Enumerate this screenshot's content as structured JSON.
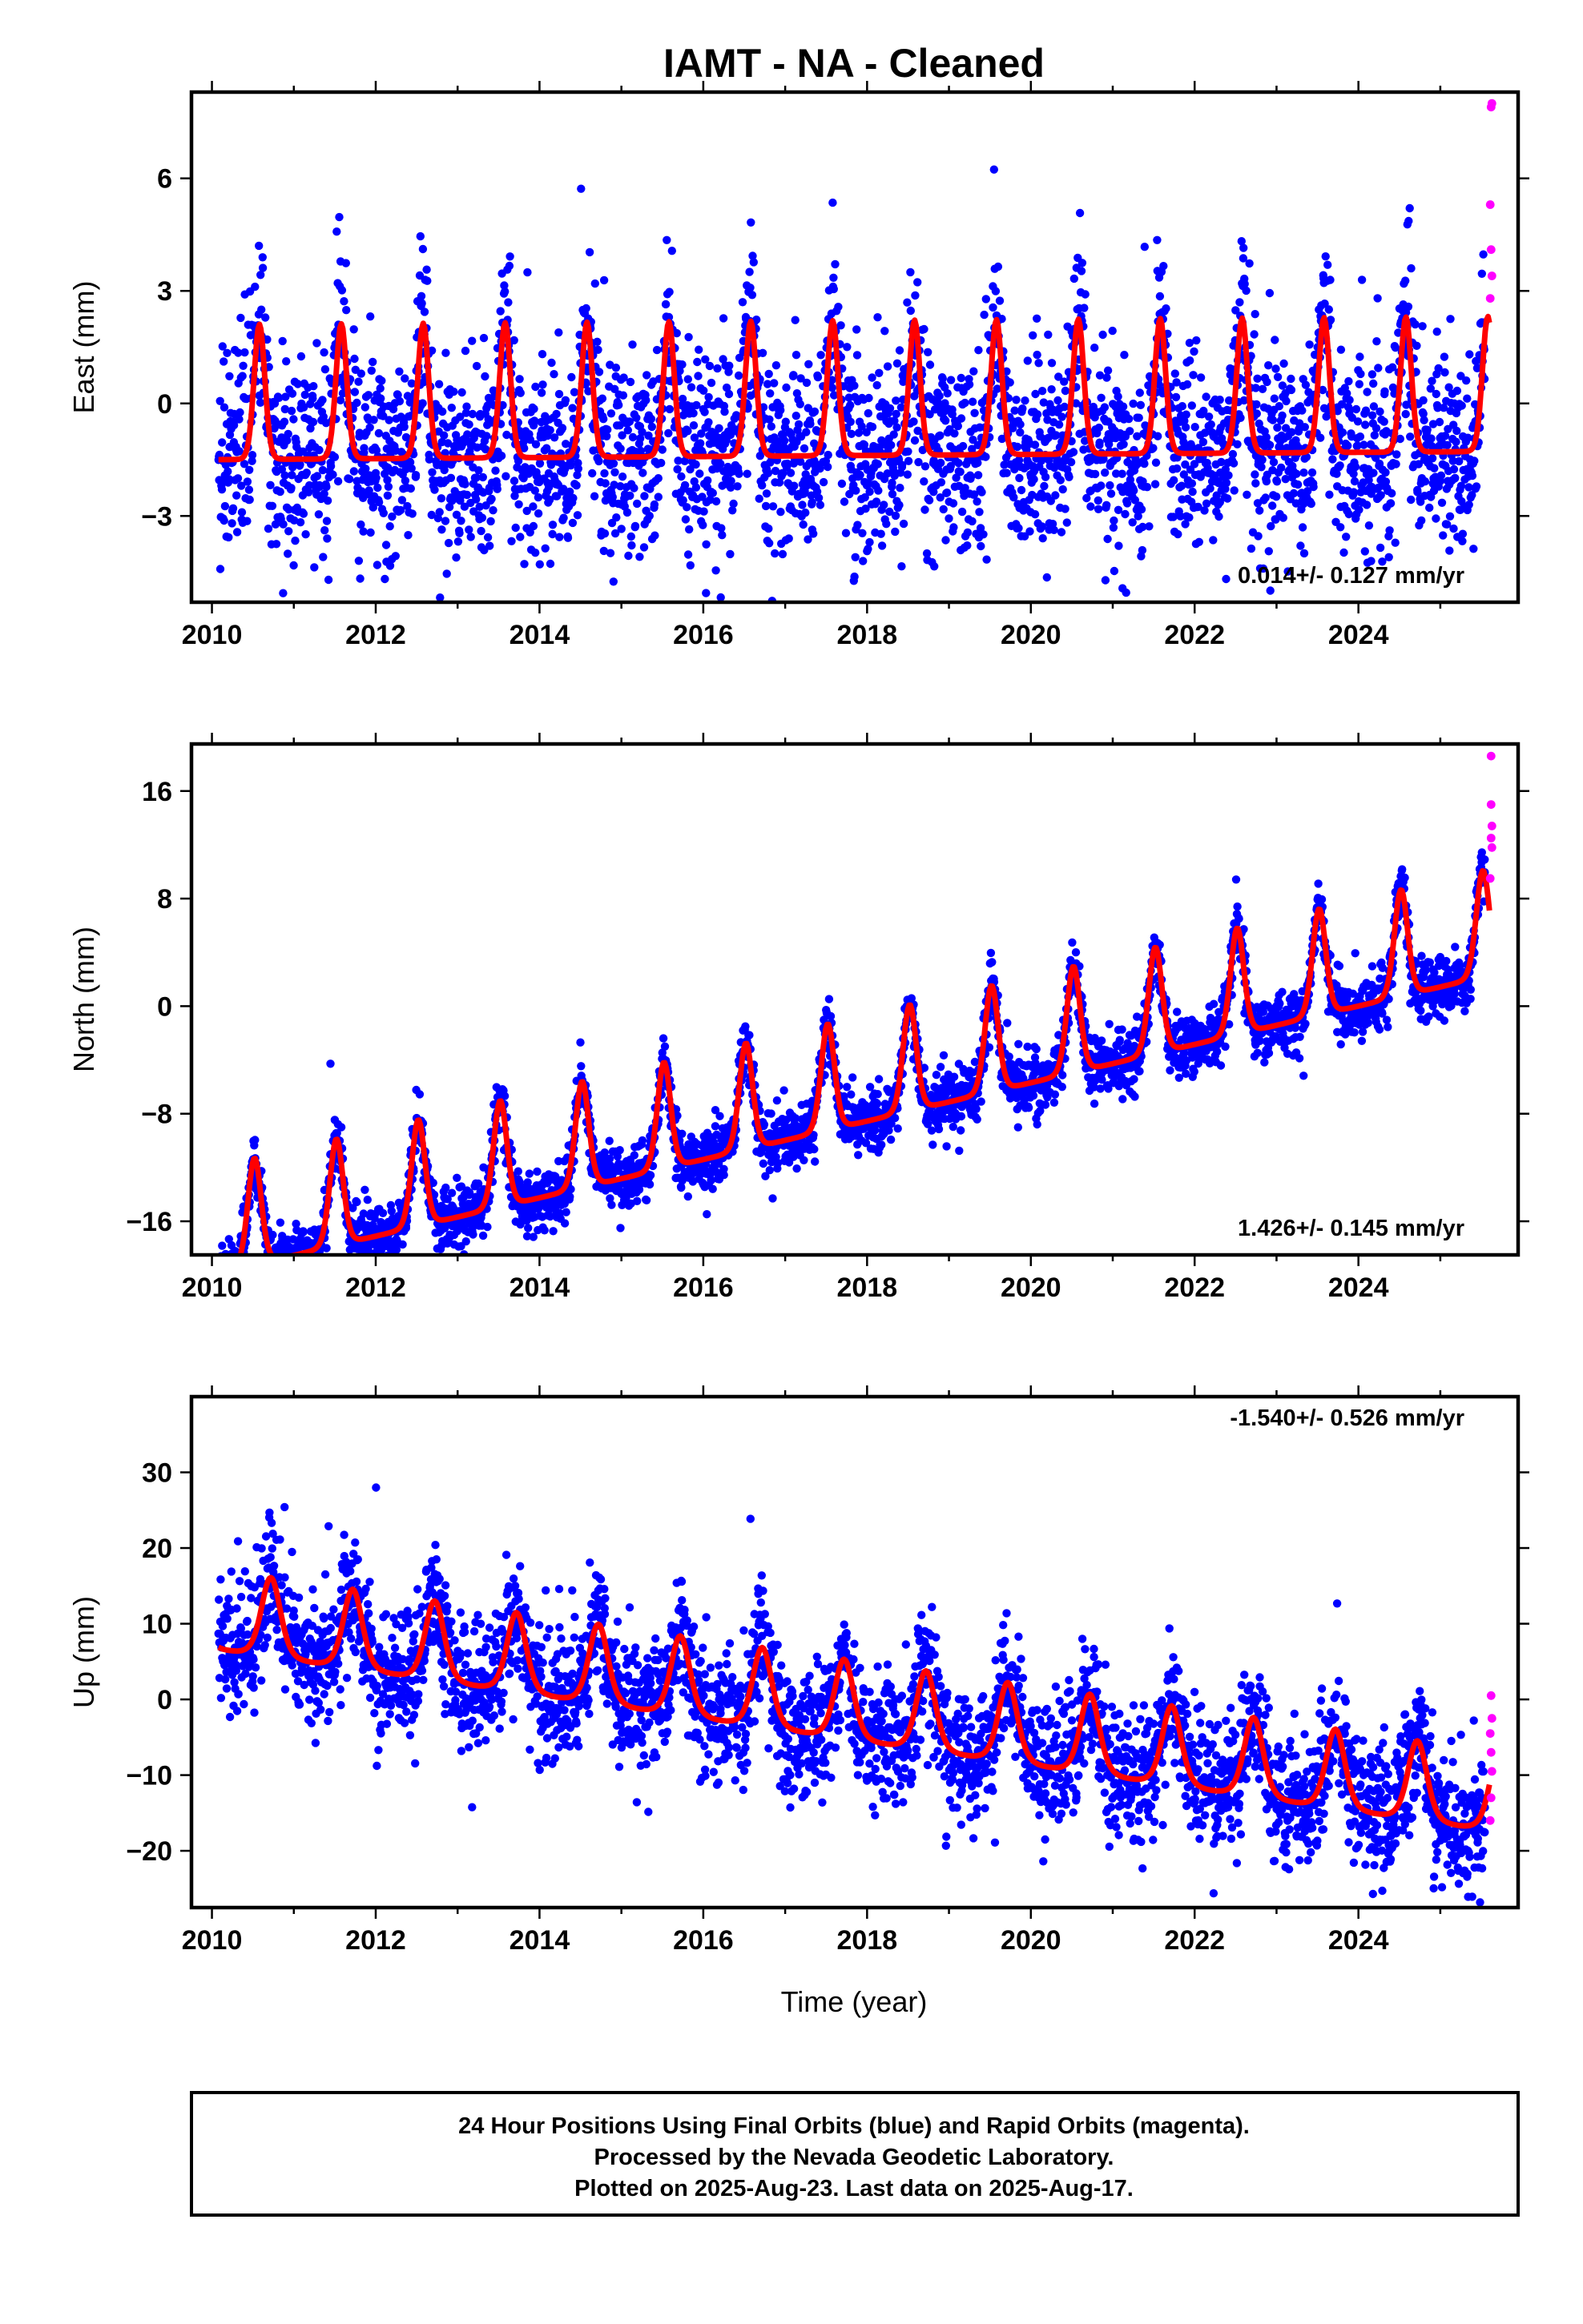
{
  "title": "IAMT  - NA - Cleaned",
  "xlabel": "Time (year)",
  "colors": {
    "final": "#0000ff",
    "rapid": "#ff00ff",
    "model": "#ff0000",
    "frame": "#000000"
  },
  "footer": {
    "line1": "24 Hour Positions Using Final Orbits (blue) and Rapid Orbits (magenta).",
    "line2": "Processed by the Nevada Geodetic Laboratory.",
    "line3": "Plotted on 2025-Aug-23. Last data on 2025-Aug-17."
  },
  "chart_data": [
    {
      "type": "scatter",
      "name": "east",
      "ylabel": "East (mm)",
      "rate_text": "0.014+/- 0.127 mm/yr",
      "xlim": [
        2009.75,
        2025.95
      ],
      "ylim": [
        -5.3,
        8.3
      ],
      "xticks": [
        2010,
        2012,
        2014,
        2016,
        2018,
        2020,
        2022,
        2024
      ],
      "yticks": [
        -3,
        0,
        3,
        6
      ],
      "ytick_labels": [
        "−3",
        "0",
        "3",
        "6"
      ],
      "grid": false,
      "model": {
        "intercept": 0.3,
        "slope": 0.014,
        "amplitude": 2.0,
        "peak_phase": 0.58,
        "sharpness": 6
      },
      "scatter_std": 1.3,
      "final_data_range": [
        2010.08,
        2025.55
      ],
      "rapid_points": [
        [
          2025.62,
          7.9
        ],
        [
          2025.63,
          8.0
        ],
        [
          2025.61,
          5.3
        ],
        [
          2025.62,
          4.1
        ],
        [
          2025.63,
          3.4
        ],
        [
          2025.61,
          2.8
        ]
      ]
    },
    {
      "type": "scatter",
      "name": "north",
      "ylabel": "North (mm)",
      "rate_text": "1.426+/- 0.145 mm/yr",
      "xlim": [
        2009.75,
        2025.95
      ],
      "ylim": [
        -18.5,
        19.5
      ],
      "xticks": [
        2010,
        2012,
        2014,
        2016,
        2018,
        2020,
        2022,
        2024
      ],
      "yticks": [
        -16,
        -8,
        0,
        8,
        16
      ],
      "ytick_labels": [
        "−16",
        "−8",
        "0",
        "8",
        "16"
      ],
      "grid": false,
      "model": {
        "intercept": -16.0,
        "slope": 1.426,
        "amplitude": 4.4,
        "peak_phase": 0.52,
        "sharpness": 4
      },
      "scatter_std": 1.1,
      "final_data_range": [
        2010.08,
        2025.55
      ],
      "rapid_points": [
        [
          2025.62,
          18.6
        ],
        [
          2025.63,
          13.4
        ],
        [
          2025.62,
          12.5
        ],
        [
          2025.63,
          11.8
        ],
        [
          2025.61,
          9.5
        ],
        [
          2025.62,
          15.0
        ]
      ]
    },
    {
      "type": "scatter",
      "name": "up",
      "ylabel": "Up (mm)",
      "rate_text": "-1.540+/- 0.526 mm/yr",
      "xlim": [
        2009.75,
        2025.95
      ],
      "ylim": [
        -27.5,
        40
      ],
      "xticks": [
        2010,
        2012,
        2014,
        2016,
        2018,
        2020,
        2022,
        2024
      ],
      "yticks": [
        -20,
        -10,
        0,
        10,
        20,
        30
      ],
      "ytick_labels": [
        "−20",
        "−10",
        "0",
        "10",
        "20",
        "30"
      ],
      "grid": false,
      "model": {
        "intercept": 12.0,
        "slope": -1.54,
        "amplitude": 5.2,
        "peak_phase": 0.72,
        "sharpness": 2
      },
      "scatter_std": 4.2,
      "final_data_range": [
        2010.08,
        2025.55
      ],
      "rapid_points": [
        [
          2025.62,
          0.5
        ],
        [
          2025.63,
          -2.5
        ],
        [
          2025.61,
          -4.5
        ],
        [
          2025.62,
          -7.0
        ],
        [
          2025.63,
          -9.5
        ],
        [
          2025.62,
          -13.0
        ],
        [
          2025.61,
          -16.0
        ]
      ]
    }
  ]
}
